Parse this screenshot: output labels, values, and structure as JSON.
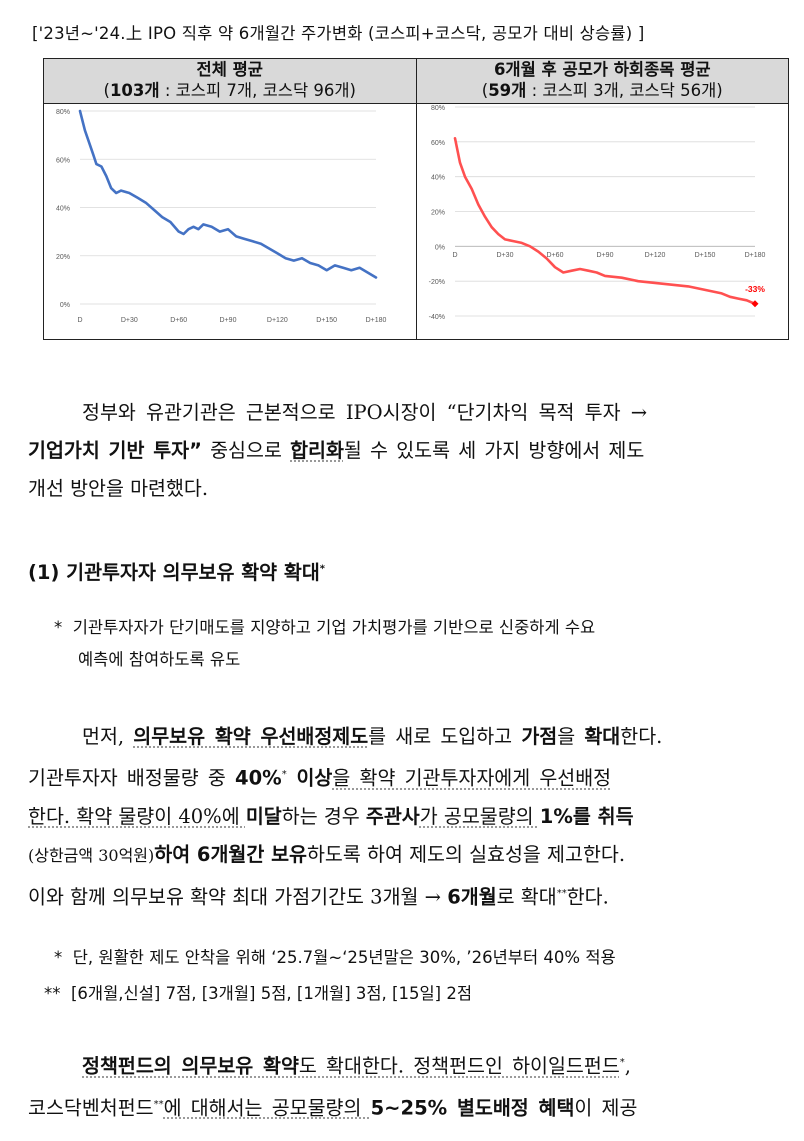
{
  "caption": "['23년~'24.上 IPO 직후 약 6개월간 주가변화 (코스피+코스닥, 공모가 대비 상승률) ]",
  "charts": {
    "left": {
      "title": "전체 평균",
      "sub_open": "(",
      "sub_count": "103개",
      "sub_rest": " : 코스피 7개, 코스닥 96개)"
    },
    "right": {
      "title": "6개월 후 공모가 하회종목 평균",
      "sub_open": "(",
      "sub_count": "59개",
      "sub_rest": " : 코스피 3개, 코스닥 56개)"
    }
  },
  "chart_data": [
    {
      "type": "line",
      "x_ticks": [
        "D",
        "D+30",
        "D+60",
        "D+90",
        "D+120",
        "D+150",
        "D+180"
      ],
      "y_ticks": [
        "80%",
        "60%",
        "40%",
        "20%",
        "0%"
      ],
      "ylim": [
        0,
        80
      ],
      "color": "#4472c4",
      "x": [
        0,
        3,
        6,
        8,
        10,
        13,
        16,
        19,
        22,
        25,
        30,
        35,
        40,
        45,
        50,
        55,
        60,
        63,
        66,
        69,
        72,
        75,
        80,
        85,
        90,
        95,
        100,
        105,
        110,
        115,
        120,
        125,
        130,
        135,
        140,
        145,
        150,
        155,
        160,
        165,
        170,
        175,
        180
      ],
      "y": [
        80,
        72,
        66,
        62,
        58,
        57,
        53,
        48,
        46,
        47,
        46,
        44,
        42,
        39,
        36,
        34,
        30,
        29,
        31,
        32,
        31,
        33,
        32,
        30,
        31,
        28,
        27,
        26,
        25,
        23,
        21,
        19,
        18,
        19,
        17,
        16,
        14,
        16,
        15,
        14,
        15,
        13,
        11
      ]
    },
    {
      "type": "line",
      "x_ticks": [
        "D",
        "D+30",
        "D+60",
        "D+90",
        "D+120",
        "D+150",
        "D+180"
      ],
      "y_ticks": [
        "80%",
        "60%",
        "40%",
        "20%",
        "0%",
        "-20%",
        "-40%"
      ],
      "ylim": [
        -40,
        80
      ],
      "color": "#ff5050",
      "x": [
        0,
        3,
        6,
        10,
        14,
        18,
        22,
        26,
        30,
        35,
        40,
        45,
        50,
        55,
        60,
        65,
        70,
        75,
        80,
        85,
        90,
        100,
        110,
        120,
        130,
        140,
        150,
        160,
        165,
        170,
        175,
        180
      ],
      "y": [
        62,
        48,
        40,
        33,
        24,
        17,
        11,
        7,
        4,
        3,
        2,
        0,
        -3,
        -7,
        -12,
        -15,
        -14,
        -13,
        -14,
        -15,
        -17,
        -18,
        -20,
        -21,
        -22,
        -23,
        -25,
        -27,
        -29,
        -30,
        -31,
        -33
      ],
      "end_label": "-33%"
    }
  ],
  "para1": {
    "l1_a": "정부와 유관기관은 근본적으로 IPO시장이 “단기차익 목적 투자 →",
    "l2_bold": "기업가치 기반 투자”",
    "l2_a": " 중심으로 ",
    "l2_bold2": "합리화",
    "l2_b": "될 수 있도록 세 가지 방향에서 제도",
    "l3": "개선 방안을 마련했다."
  },
  "heading": {
    "text": "(1) 기관투자자 의무보유 확약 확대",
    "mark": "*"
  },
  "note1": {
    "star": "*",
    "l1": "기관투자자가 단기매도를 지양하고 기업 가치평가를 기반으로 신중하게 수요",
    "l2": "예측에 참여하도록 유도"
  },
  "para2": {
    "l1_a": "먼저, ",
    "l1_b": "의무보유 확약 우선배정제도",
    "l1_c": "를 새로 도입하고 ",
    "l1_d": "가점",
    "l1_e": "을 ",
    "l1_f": "확대",
    "l1_g": "한다.",
    "l2_a": "기관투자자 배정물량 중 ",
    "l2_b": "40%",
    "l2_sup": "*",
    "l2_c": " 이상",
    "l2_d": "을 확약 기관투자자에게 우선배정",
    "l3_a": "한다. 확약 물량이 40%에 ",
    "l3_b": "미달",
    "l3_c": "하는 경우 ",
    "l3_d": "주관사",
    "l3_e": "가 공모물량의 ",
    "l3_f": "1%를 취득",
    "l4_a": "(상한금액 30억원)",
    "l4_b": "하여 6개월간 보유",
    "l4_c": "하도록 하여 제도의 실효성을 제고한다.",
    "l5_a": "이와 함께 의무보유 확약 최대 가점기간도 3개월 → ",
    "l5_b": "6개월",
    "l5_c": "로 확대",
    "l5_sup": "**",
    "l5_d": "한다."
  },
  "note2": {
    "star": "*",
    "text": "단, 원활한 제도 안착을 위해 ‘25.7월~‘25년말은 30%, ’26년부터 40% 적용"
  },
  "note3": {
    "star": "**",
    "text": "[6개월,신설] 7점, [3개월] 5점, [1개월] 3점, [15일] 2점"
  },
  "para3": {
    "l1_a": "정책펀드의 의무보유 확약",
    "l1_b": "도 확대한다. 정책펀드인 하이일드펀드",
    "l1_sup": "*",
    "l1_c": ",",
    "l2_a": "코스닥벤처펀드",
    "l2_sup": "**",
    "l2_b": "에 대해서는 공모물량의 ",
    "l2_c": "5~25% 별도배정 혜택",
    "l2_d": "이 제공"
  }
}
